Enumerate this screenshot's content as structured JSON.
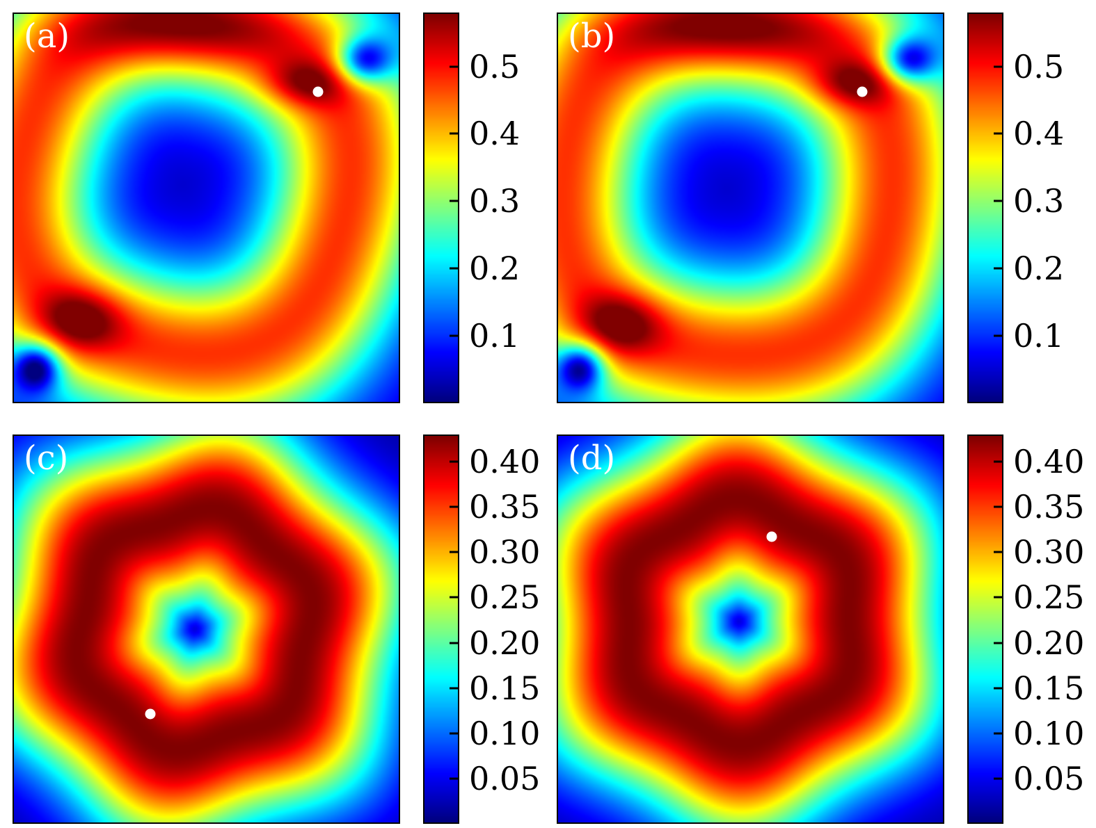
{
  "figure": {
    "background": "#ffffff",
    "colormap": "jet",
    "marker_color": "#ffffff"
  },
  "chart_data": [
    {
      "type": "heatmap",
      "label": "(a)",
      "colormap": "jet",
      "vmin": 0.0,
      "vmax": 0.58,
      "colorbar_ticks": [
        "0.5",
        "0.4",
        "0.3",
        "0.2",
        "0.1"
      ],
      "colorbar_tick_values": [
        0.5,
        0.4,
        0.3,
        0.2,
        0.1
      ],
      "marker": {
        "x": 0.79,
        "y": 0.2
      },
      "field": {
        "base": 0.04,
        "components": [
          {
            "type": "ring",
            "cx": 0.44,
            "cy": 0.44,
            "r0": 0.44,
            "w": 0.21,
            "p": 2,
            "amp": 0.44,
            "wobble": 0.03,
            "lobes": 4,
            "phase": 0.5
          },
          {
            "type": "blob",
            "cx": 0.42,
            "cy": 0.04,
            "sx": 0.3,
            "sy": 0.1,
            "amp": 0.12
          },
          {
            "type": "blob",
            "cx": 0.76,
            "cy": 0.18,
            "sx": 0.11,
            "sy": 0.06,
            "amp": 0.13
          },
          {
            "type": "blob",
            "cx": 0.17,
            "cy": 0.79,
            "sx": 0.11,
            "sy": 0.08,
            "amp": 0.15
          },
          {
            "type": "blob",
            "cx": 0.91,
            "cy": 0.12,
            "sx": 0.07,
            "sy": 0.06,
            "amp": -0.3
          },
          {
            "type": "blob",
            "cx": 0.06,
            "cy": 0.91,
            "sx": 0.06,
            "sy": 0.06,
            "amp": -0.3
          }
        ]
      }
    },
    {
      "type": "heatmap",
      "label": "(b)",
      "colormap": "jet",
      "vmin": 0.0,
      "vmax": 0.58,
      "colorbar_ticks": [
        "0.5",
        "0.4",
        "0.3",
        "0.2",
        "0.1"
      ],
      "colorbar_tick_values": [
        0.5,
        0.4,
        0.3,
        0.2,
        0.1
      ],
      "marker": {
        "x": 0.79,
        "y": 0.2
      },
      "field": {
        "base": 0.04,
        "components": [
          {
            "type": "ring",
            "cx": 0.44,
            "cy": 0.45,
            "r0": 0.44,
            "w": 0.21,
            "p": 2,
            "amp": 0.44,
            "wobble": 0.03,
            "lobes": 4,
            "phase": 1.1
          },
          {
            "type": "blob",
            "cx": 0.43,
            "cy": 0.04,
            "sx": 0.3,
            "sy": 0.1,
            "amp": 0.12
          },
          {
            "type": "blob",
            "cx": 0.77,
            "cy": 0.18,
            "sx": 0.11,
            "sy": 0.06,
            "amp": 0.13
          },
          {
            "type": "blob",
            "cx": 0.16,
            "cy": 0.8,
            "sx": 0.11,
            "sy": 0.08,
            "amp": 0.15
          },
          {
            "type": "blob",
            "cx": 0.91,
            "cy": 0.12,
            "sx": 0.07,
            "sy": 0.06,
            "amp": -0.3
          },
          {
            "type": "blob",
            "cx": 0.06,
            "cy": 0.91,
            "sx": 0.06,
            "sy": 0.06,
            "amp": -0.3
          }
        ]
      }
    },
    {
      "type": "heatmap",
      "label": "(c)",
      "colormap": "jet",
      "vmin": 0.0,
      "vmax": 0.43,
      "colorbar_ticks": [
        "0.40",
        "0.35",
        "0.30",
        "0.25",
        "0.20",
        "0.15",
        "0.10",
        "0.05"
      ],
      "colorbar_tick_values": [
        0.4,
        0.35,
        0.3,
        0.25,
        0.2,
        0.15,
        0.1,
        0.05
      ],
      "marker": {
        "x": 0.355,
        "y": 0.72
      },
      "field": {
        "base": 0.01,
        "components": [
          {
            "type": "ring",
            "cx": 0.47,
            "cy": 0.5,
            "r0": 0.3,
            "w": 0.24,
            "p": 2,
            "amp": 0.42,
            "wobble": 0.05,
            "lobes": 6,
            "phase": 0.3
          },
          {
            "type": "blob",
            "cx": 0.47,
            "cy": 0.5,
            "sx": 0.05,
            "sy": 0.05,
            "amp": -0.06
          }
        ]
      }
    },
    {
      "type": "heatmap",
      "label": "(d)",
      "colormap": "jet",
      "vmin": 0.0,
      "vmax": 0.43,
      "colorbar_ticks": [
        "0.40",
        "0.35",
        "0.30",
        "0.25",
        "0.20",
        "0.15",
        "0.10",
        "0.05"
      ],
      "colorbar_tick_values": [
        0.4,
        0.35,
        0.3,
        0.25,
        0.2,
        0.15,
        0.1,
        0.05
      ],
      "marker": {
        "x": 0.556,
        "y": 0.26
      },
      "field": {
        "base": 0.01,
        "components": [
          {
            "type": "ring",
            "cx": 0.47,
            "cy": 0.48,
            "r0": 0.3,
            "w": 0.24,
            "p": 2,
            "amp": 0.42,
            "wobble": 0.05,
            "lobes": 6,
            "phase": 1.7
          },
          {
            "type": "blob",
            "cx": 0.47,
            "cy": 0.48,
            "sx": 0.05,
            "sy": 0.05,
            "amp": -0.06
          }
        ]
      }
    }
  ]
}
